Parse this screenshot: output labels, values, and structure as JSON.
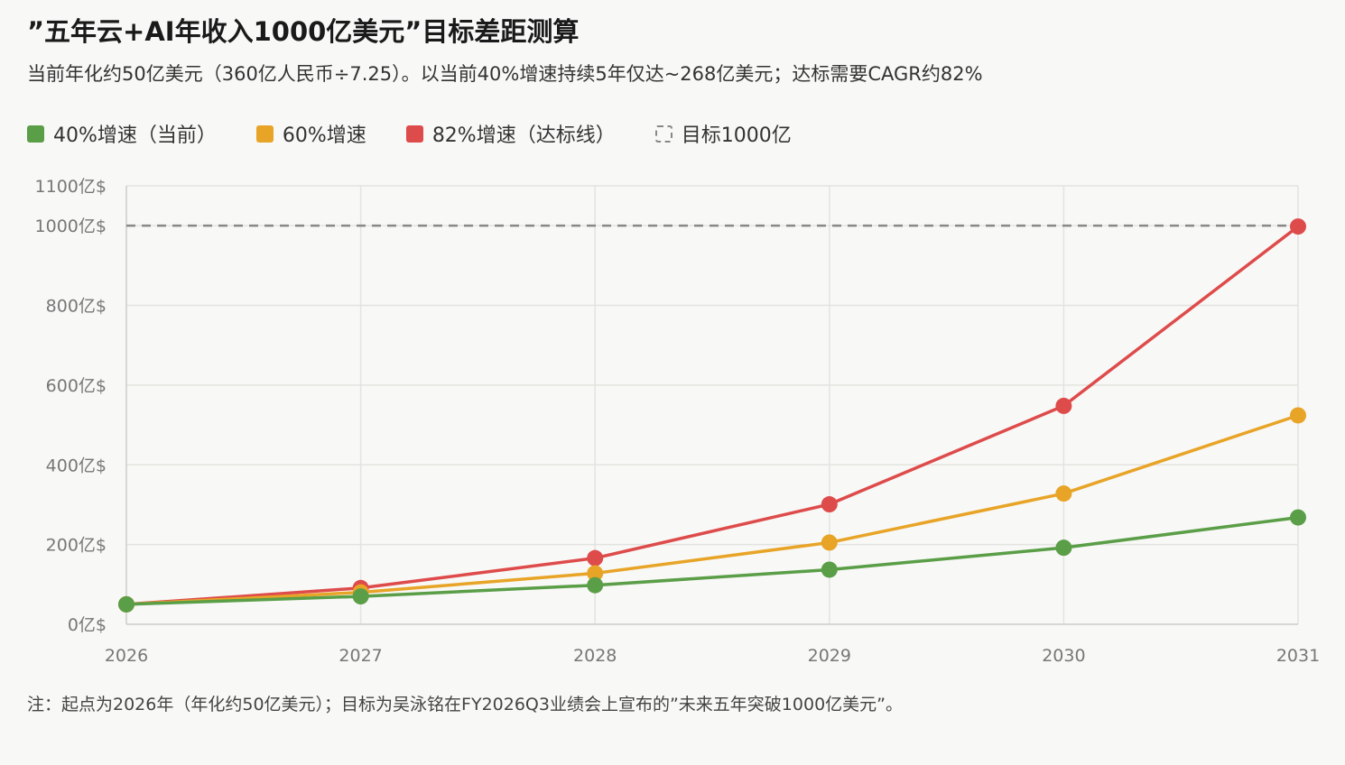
{
  "header": {
    "title": "”五年云+AI年收入1000亿美元”目标差距测算",
    "subtitle": "当前年化约50亿美元（360亿人民币÷7.25）。以当前40%增速持续5年仅达~268亿美元；达标需要CAGR约82%"
  },
  "legend": [
    {
      "label": "40%增速（当前）",
      "color": "#5a9e47",
      "style": "solid"
    },
    {
      "label": "60%增速",
      "color": "#e8a427",
      "style": "solid"
    },
    {
      "label": "82%增速（达标线）",
      "color": "#de4b4b",
      "style": "solid"
    },
    {
      "label": "目标1000亿",
      "color": "#888888",
      "style": "dashed"
    }
  ],
  "chart_data": {
    "type": "line",
    "categories": [
      "2026",
      "2027",
      "2028",
      "2029",
      "2030",
      "2031"
    ],
    "y_tick_labels": [
      "0亿$",
      "200亿$",
      "400亿$",
      "600亿$",
      "800亿$",
      "1000亿$",
      "1100亿$"
    ],
    "y_ticks": [
      0,
      200,
      400,
      600,
      800,
      1000,
      1100
    ],
    "ylim": [
      0,
      1100
    ],
    "grid": true,
    "legend_position": "top-left",
    "series": [
      {
        "name": "40%增速（当前）",
        "color": "#5a9e47",
        "values": [
          50,
          70,
          98,
          137,
          192,
          268
        ]
      },
      {
        "name": "60%增速",
        "color": "#e8a427",
        "values": [
          50,
          80,
          128,
          205,
          328,
          524
        ]
      },
      {
        "name": "82%增速（达标线）",
        "color": "#de4b4b",
        "values": [
          50,
          91,
          166,
          301,
          548,
          998
        ]
      }
    ],
    "target": {
      "name": "目标1000亿",
      "value": 1000,
      "color": "#888888",
      "style": "dashed"
    }
  },
  "footnote": "注：起点为2026年（年化约50亿美元）；目标为吴泳铭在FY2026Q3业绩会上宣布的”未来五年突破1000亿美元”。"
}
